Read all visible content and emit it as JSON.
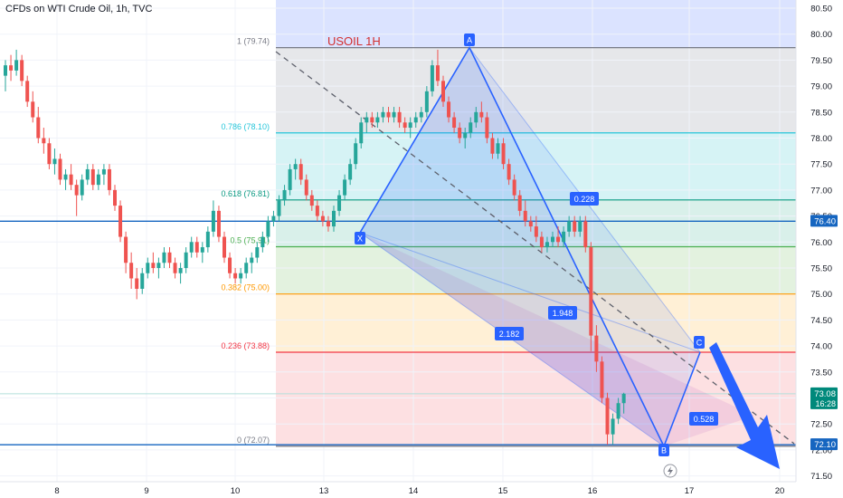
{
  "header": {
    "title": "CFDs on WTI Crude Oil, 1h, TVC"
  },
  "annotation_label": "USOIL 1H",
  "colors": {
    "up": "#26a69a",
    "down": "#ef5350",
    "pattern_line": "#2962ff",
    "price_line": "#1565c0",
    "axis_text": "#131722"
  },
  "chart_data": {
    "type": "candlestick",
    "title": "CFDs on WTI Crude Oil, 1h, TVC",
    "ylim": [
      71.4,
      80.6
    ],
    "y_ticks": [
      "71.50",
      "72.00",
      "72.50",
      "73.00",
      "73.50",
      "74.00",
      "74.50",
      "75.00",
      "75.50",
      "76.00",
      "76.50",
      "77.00",
      "77.50",
      "78.00",
      "78.50",
      "79.00",
      "79.50",
      "80.00",
      "80.50"
    ],
    "x_ticks": [
      "8",
      "9",
      "10",
      "13",
      "14",
      "15",
      "16",
      "17",
      "20"
    ],
    "price_labels": [
      {
        "value": 76.4,
        "text": "76.40",
        "color": "#1565c0"
      },
      {
        "value": 73.08,
        "text": "73.08",
        "subtext": "16:28",
        "color": "#00897b"
      },
      {
        "value": 72.1,
        "text": "72.10",
        "color": "#1565c0"
      }
    ],
    "fib_levels": [
      {
        "ratio": "1",
        "price": 79.74,
        "label": "1 (79.74)",
        "color": "#787b86"
      },
      {
        "ratio": "0.786",
        "price": 78.1,
        "label": "0.786 (78.10)",
        "color": "#26c6da"
      },
      {
        "ratio": "0.618",
        "price": 76.81,
        "label": "0.618 (76.81)",
        "color": "#089981"
      },
      {
        "ratio": "0.5",
        "price": 75.91,
        "label": "0.5 (75.91)",
        "color": "#4caf50"
      },
      {
        "ratio": "0.382",
        "price": 75.0,
        "label": "0.382 (75.00)",
        "color": "#ff9800"
      },
      {
        "ratio": "0.236",
        "price": 73.88,
        "label": "0.236 (73.88)",
        "color": "#f23645"
      },
      {
        "ratio": "0",
        "price": 72.07,
        "label": "0 (72.07)",
        "color": "#787b86"
      }
    ],
    "horizontal_lines": [
      76.4,
      72.1
    ],
    "pattern_points": [
      {
        "name": "X",
        "price": 76.18
      },
      {
        "name": "A",
        "price": 79.74
      },
      {
        "name": "B",
        "price": 72.07
      },
      {
        "name": "C",
        "price": 73.88
      }
    ],
    "pattern_ratios": [
      "2.182",
      "1.948",
      "0.228",
      "0.528"
    ],
    "candles_ohlc": [
      [
        79.2,
        79.5,
        78.9,
        79.4
      ],
      [
        79.4,
        79.6,
        79.1,
        79.3
      ],
      [
        79.3,
        79.7,
        79.2,
        79.5
      ],
      [
        79.5,
        79.6,
        79.0,
        79.1
      ],
      [
        79.1,
        79.2,
        78.6,
        78.7
      ],
      [
        78.7,
        78.9,
        78.3,
        78.4
      ],
      [
        78.4,
        78.6,
        77.9,
        78.0
      ],
      [
        78.0,
        78.2,
        77.7,
        77.9
      ],
      [
        77.9,
        78.0,
        77.4,
        77.5
      ],
      [
        77.5,
        77.8,
        77.3,
        77.6
      ],
      [
        77.6,
        77.7,
        77.1,
        77.2
      ],
      [
        77.2,
        77.4,
        77.0,
        77.3
      ],
      [
        77.3,
        77.5,
        77.0,
        77.1
      ],
      [
        77.1,
        77.2,
        76.5,
        76.9
      ],
      [
        76.9,
        77.3,
        76.8,
        77.2
      ],
      [
        77.2,
        77.5,
        77.1,
        77.4
      ],
      [
        77.4,
        77.5,
        77.0,
        77.1
      ],
      [
        77.1,
        77.4,
        77.0,
        77.3
      ],
      [
        77.3,
        77.5,
        77.1,
        77.4
      ],
      [
        77.4,
        77.5,
        76.9,
        77.0
      ],
      [
        77.0,
        77.1,
        76.6,
        76.7
      ],
      [
        76.7,
        76.8,
        76.0,
        76.1
      ],
      [
        76.1,
        76.2,
        75.4,
        75.6
      ],
      [
        75.6,
        75.8,
        75.1,
        75.3
      ],
      [
        75.3,
        75.5,
        74.9,
        75.1
      ],
      [
        75.1,
        75.5,
        75.0,
        75.4
      ],
      [
        75.4,
        75.7,
        75.3,
        75.6
      ],
      [
        75.6,
        75.8,
        75.4,
        75.5
      ],
      [
        75.5,
        75.7,
        75.3,
        75.6
      ],
      [
        75.6,
        75.9,
        75.5,
        75.8
      ],
      [
        75.8,
        75.9,
        75.5,
        75.6
      ],
      [
        75.6,
        75.7,
        75.3,
        75.4
      ],
      [
        75.4,
        75.6,
        75.2,
        75.5
      ],
      [
        75.5,
        75.9,
        75.4,
        75.8
      ],
      [
        75.8,
        76.1,
        75.7,
        76.0
      ],
      [
        76.0,
        76.1,
        75.7,
        75.8
      ],
      [
        75.8,
        76.0,
        75.6,
        75.9
      ],
      [
        75.9,
        76.3,
        75.8,
        76.2
      ],
      [
        76.2,
        76.8,
        76.1,
        76.6
      ],
      [
        76.6,
        76.7,
        76.0,
        76.1
      ],
      [
        76.1,
        76.2,
        75.6,
        75.7
      ],
      [
        75.7,
        75.8,
        75.3,
        75.4
      ],
      [
        75.4,
        75.5,
        75.2,
        75.3
      ],
      [
        75.3,
        75.5,
        75.2,
        75.4
      ],
      [
        75.4,
        75.7,
        75.3,
        75.6
      ],
      [
        75.6,
        75.8,
        75.4,
        75.7
      ],
      [
        75.7,
        76.0,
        75.6,
        75.9
      ],
      [
        75.9,
        76.2,
        75.8,
        76.1
      ],
      [
        76.1,
        76.5,
        76.0,
        76.4
      ],
      [
        76.4,
        76.6,
        76.3,
        76.5
      ],
      [
        76.5,
        76.9,
        76.4,
        76.8
      ],
      [
        76.8,
        77.1,
        76.7,
        77.0
      ],
      [
        77.0,
        77.5,
        76.9,
        77.4
      ],
      [
        77.4,
        77.6,
        77.2,
        77.5
      ],
      [
        77.5,
        77.6,
        77.1,
        77.2
      ],
      [
        77.2,
        77.3,
        76.8,
        76.9
      ],
      [
        76.9,
        77.0,
        76.6,
        76.7
      ],
      [
        76.7,
        76.8,
        76.4,
        76.5
      ],
      [
        76.5,
        76.6,
        76.3,
        76.4
      ],
      [
        76.4,
        76.5,
        76.2,
        76.3
      ],
      [
        76.3,
        76.7,
        76.2,
        76.6
      ],
      [
        76.6,
        77.0,
        76.5,
        76.9
      ],
      [
        76.9,
        77.3,
        76.8,
        77.2
      ],
      [
        77.2,
        77.6,
        77.1,
        77.5
      ],
      [
        77.5,
        78.0,
        77.4,
        77.9
      ],
      [
        77.9,
        78.4,
        77.8,
        78.3
      ],
      [
        78.3,
        78.5,
        78.1,
        78.4
      ],
      [
        78.4,
        78.5,
        78.2,
        78.3
      ],
      [
        78.3,
        78.5,
        78.2,
        78.4
      ],
      [
        78.4,
        78.6,
        78.3,
        78.5
      ],
      [
        78.5,
        78.6,
        78.3,
        78.4
      ],
      [
        78.4,
        78.6,
        78.3,
        78.5
      ],
      [
        78.5,
        78.6,
        78.2,
        78.3
      ],
      [
        78.3,
        78.4,
        78.1,
        78.2
      ],
      [
        78.2,
        78.4,
        78.0,
        78.3
      ],
      [
        78.3,
        78.5,
        78.2,
        78.4
      ],
      [
        78.4,
        78.6,
        78.3,
        78.5
      ],
      [
        78.5,
        79.0,
        78.4,
        78.9
      ],
      [
        78.9,
        79.5,
        78.8,
        79.4
      ],
      [
        79.4,
        79.7,
        79.0,
        79.1
      ],
      [
        79.1,
        79.2,
        78.6,
        78.7
      ],
      [
        78.7,
        78.8,
        78.3,
        78.4
      ],
      [
        78.4,
        78.5,
        78.1,
        78.2
      ],
      [
        78.2,
        78.3,
        77.9,
        78.0
      ],
      [
        78.0,
        78.2,
        77.8,
        78.1
      ],
      [
        78.1,
        78.4,
        78.0,
        78.3
      ],
      [
        78.3,
        78.6,
        78.2,
        78.5
      ],
      [
        78.5,
        78.7,
        78.3,
        78.4
      ],
      [
        78.4,
        78.5,
        77.9,
        78.0
      ],
      [
        78.0,
        78.1,
        77.6,
        77.7
      ],
      [
        77.7,
        78.0,
        77.6,
        77.9
      ],
      [
        77.9,
        78.0,
        77.4,
        77.5
      ],
      [
        77.5,
        77.6,
        77.1,
        77.2
      ],
      [
        77.2,
        77.3,
        76.8,
        76.9
      ],
      [
        76.9,
        77.0,
        76.5,
        76.6
      ],
      [
        76.6,
        76.8,
        76.3,
        76.4
      ],
      [
        76.4,
        76.5,
        76.2,
        76.3
      ],
      [
        76.3,
        76.5,
        76.0,
        76.1
      ],
      [
        76.1,
        76.2,
        75.8,
        75.9
      ],
      [
        75.9,
        76.1,
        75.8,
        76.0
      ],
      [
        76.0,
        76.2,
        75.9,
        76.1
      ],
      [
        76.1,
        76.3,
        75.9,
        76.0
      ],
      [
        76.0,
        76.3,
        75.9,
        76.2
      ],
      [
        76.2,
        76.5,
        76.1,
        76.4
      ],
      [
        76.4,
        76.5,
        76.1,
        76.2
      ],
      [
        76.2,
        76.5,
        76.1,
        76.4
      ],
      [
        76.4,
        76.5,
        75.8,
        75.9
      ],
      [
        75.9,
        76.0,
        73.9,
        74.2
      ],
      [
        74.2,
        74.4,
        73.5,
        73.7
      ],
      [
        73.7,
        73.8,
        72.9,
        73.0
      ],
      [
        73.0,
        73.1,
        72.1,
        72.3
      ],
      [
        72.3,
        72.7,
        72.1,
        72.6
      ],
      [
        72.6,
        73.0,
        72.5,
        72.9
      ],
      [
        72.9,
        73.1,
        72.7,
        73.08
      ]
    ]
  }
}
